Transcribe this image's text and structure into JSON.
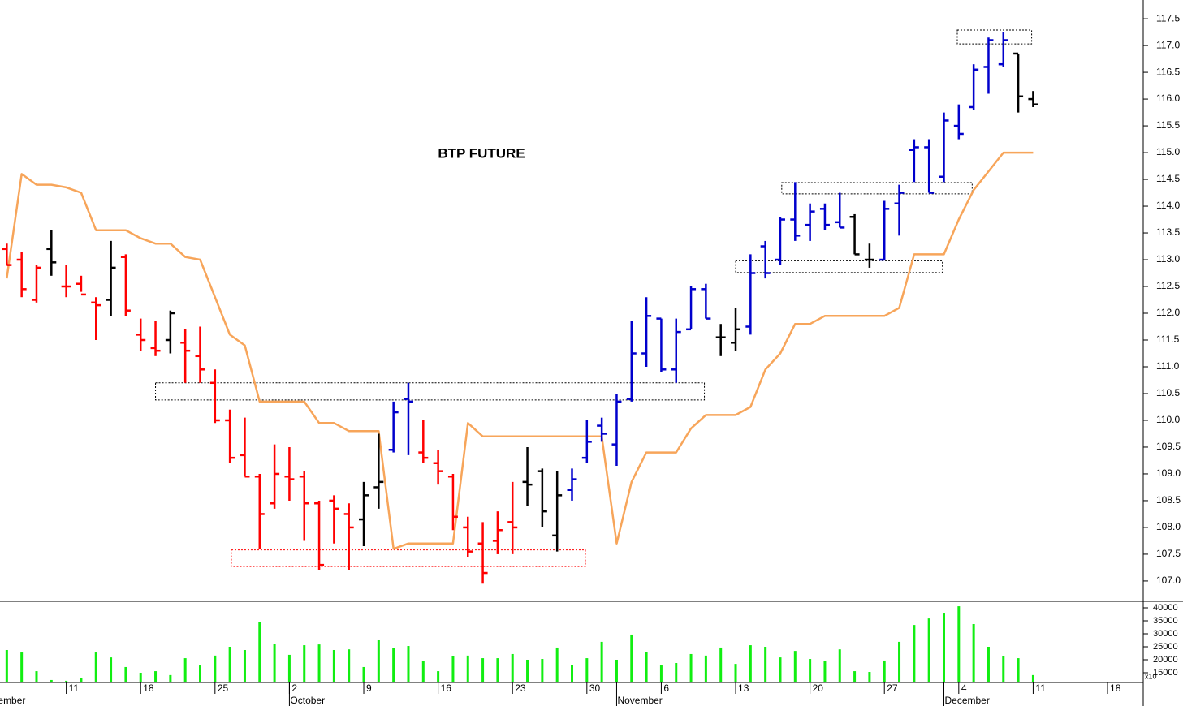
{
  "chart_data": [
    {
      "type": "ohlc",
      "title": "BTP FUTURE",
      "categories": [
        null,
        null,
        null,
        null,
        null,
        null,
        "11",
        null,
        null,
        null,
        null,
        "18",
        null,
        null,
        null,
        null,
        "25",
        null,
        null,
        null,
        null,
        "2",
        null,
        null,
        null,
        null,
        "9",
        null,
        null,
        null,
        null,
        "16",
        null,
        null,
        null,
        null,
        "23",
        null,
        null,
        null,
        null,
        "30",
        null,
        null,
        null,
        null,
        "6",
        null,
        null,
        null,
        null,
        "13",
        null,
        null,
        null,
        null,
        "20",
        null,
        null,
        null,
        null,
        "27",
        null,
        null,
        null,
        null,
        "4",
        null,
        null,
        null,
        null,
        "11",
        null,
        null,
        null,
        null,
        "18",
        null,
        null
      ],
      "months": [
        "September",
        null,
        null,
        null,
        null,
        null,
        null,
        null,
        null,
        null,
        null,
        null,
        null,
        null,
        null,
        null,
        null,
        null,
        null,
        null,
        null,
        "October",
        null,
        null,
        null,
        null,
        null,
        null,
        null,
        null,
        null,
        null,
        null,
        null,
        null,
        null,
        null,
        null,
        null,
        null,
        null,
        null,
        null,
        "November",
        null,
        null,
        null,
        null,
        null,
        null,
        null,
        null,
        null,
        null,
        null,
        null,
        null,
        null,
        null,
        null,
        null,
        null,
        null,
        null,
        null,
        "December",
        null,
        null,
        null,
        null,
        null,
        null,
        null,
        null,
        null,
        null,
        null,
        null,
        null
      ],
      "open": [
        null,
        null,
        113.2,
        113.0,
        112.25,
        113.2,
        112.5,
        112.55,
        112.2,
        112.25,
        113.05,
        111.6,
        111.35,
        111.5,
        111.45,
        111.2,
        110.7,
        110.0,
        109.35,
        108.95,
        108.45,
        108.95,
        108.95,
        108.45,
        108.5,
        108.25,
        108.15,
        108.75,
        109.45,
        110.4,
        109.4,
        109.2,
        108.95,
        108.0,
        107.7,
        107.75,
        108.1,
        108.85,
        109.05,
        107.85,
        108.7,
        109.3,
        109.9,
        109.55,
        110.4,
        111.25,
        111.9,
        110.95,
        111.7,
        112.45,
        111.55,
        111.45,
        111.75,
        113.25,
        113.0,
        113.75,
        113.65,
        113.95,
        113.7,
        113.8,
        113.0,
        113.0,
        114.05,
        115.05,
        115.1,
        114.55,
        115.5,
        115.85,
        116.6,
        116.65,
        116.85,
        116.0,
        null,
        null,
        null,
        null,
        null,
        null,
        null
      ],
      "high": [
        null,
        null,
        113.3,
        113.15,
        112.9,
        113.55,
        112.9,
        112.7,
        112.3,
        113.35,
        113.1,
        111.9,
        111.85,
        112.05,
        111.7,
        111.75,
        110.95,
        110.2,
        110.05,
        109.0,
        109.55,
        109.5,
        109.05,
        108.5,
        108.6,
        108.45,
        108.85,
        109.75,
        110.35,
        110.7,
        110.0,
        109.45,
        109.0,
        108.2,
        108.1,
        108.3,
        108.85,
        109.5,
        109.1,
        109.05,
        109.1,
        110.0,
        110.05,
        110.5,
        111.85,
        112.3,
        111.9,
        111.9,
        112.5,
        112.55,
        111.8,
        112.1,
        113.1,
        113.35,
        113.8,
        114.45,
        114.05,
        114.05,
        114.25,
        113.85,
        113.3,
        114.1,
        114.4,
        115.25,
        115.25,
        115.75,
        115.9,
        116.65,
        117.15,
        117.25,
        116.85,
        116.15,
        null,
        null,
        null,
        null,
        null,
        null,
        null
      ],
      "low": [
        null,
        null,
        112.9,
        112.3,
        112.2,
        112.7,
        112.3,
        112.4,
        111.5,
        111.95,
        111.95,
        111.3,
        111.2,
        111.25,
        110.7,
        110.7,
        109.95,
        109.2,
        108.95,
        107.6,
        108.35,
        108.5,
        107.75,
        107.2,
        107.7,
        107.2,
        107.65,
        108.35,
        109.4,
        109.35,
        109.2,
        108.8,
        107.95,
        107.45,
        106.95,
        107.5,
        107.5,
        108.4,
        108.0,
        107.55,
        108.5,
        109.2,
        109.6,
        109.15,
        110.35,
        111.0,
        110.9,
        110.7,
        111.7,
        111.9,
        111.2,
        111.3,
        111.6,
        112.65,
        112.9,
        113.35,
        113.35,
        113.55,
        113.6,
        113.1,
        112.85,
        113.0,
        113.45,
        114.45,
        114.25,
        114.45,
        115.25,
        115.8,
        116.1,
        116.6,
        115.75,
        115.85,
        null,
        null,
        null,
        null,
        null,
        null,
        null
      ],
      "close": [
        null,
        null,
        112.9,
        112.45,
        112.85,
        112.95,
        112.5,
        112.35,
        112.15,
        112.85,
        112.05,
        111.5,
        111.3,
        112.0,
        111.3,
        110.95,
        110.0,
        109.3,
        108.95,
        108.25,
        109.0,
        108.9,
        108.45,
        107.3,
        108.35,
        108.0,
        108.6,
        108.85,
        110.15,
        110.35,
        109.3,
        109.05,
        108.2,
        107.55,
        107.15,
        107.95,
        108.0,
        108.8,
        108.3,
        108.6,
        108.9,
        109.6,
        109.75,
        110.35,
        111.25,
        111.95,
        110.95,
        111.65,
        112.45,
        111.9,
        111.55,
        111.7,
        112.75,
        112.75,
        113.75,
        113.45,
        113.9,
        113.65,
        113.6,
        113.1,
        113.0,
        113.95,
        114.25,
        115.1,
        114.25,
        115.6,
        115.35,
        116.55,
        117.1,
        117.1,
        116.05,
        115.9,
        null,
        null,
        null,
        null,
        null,
        null,
        null
      ],
      "bar_colors": [
        null,
        null,
        "#ff0000",
        "#ff0000",
        "#ff0000",
        "#000000",
        "#ff0000",
        "#ff0000",
        "#ff0000",
        "#000000",
        "#ff0000",
        "#ff0000",
        "#ff0000",
        "#000000",
        "#ff0000",
        "#ff0000",
        "#ff0000",
        "#ff0000",
        "#ff0000",
        "#ff0000",
        "#ff0000",
        "#ff0000",
        "#ff0000",
        "#ff0000",
        "#ff0000",
        "#ff0000",
        "#000000",
        "#000000",
        "#0000cc",
        "#0000cc",
        "#ff0000",
        "#ff0000",
        "#ff0000",
        "#ff0000",
        "#ff0000",
        "#ff0000",
        "#ff0000",
        "#000000",
        "#000000",
        "#000000",
        "#0000cc",
        "#0000cc",
        "#0000cc",
        "#0000cc",
        "#0000cc",
        "#0000cc",
        "#0000cc",
        "#0000cc",
        "#0000cc",
        "#0000cc",
        "#000000",
        "#000000",
        "#0000cc",
        "#0000cc",
        "#0000cc",
        "#0000cc",
        "#0000cc",
        "#0000cc",
        "#0000cc",
        "#000000",
        "#000000",
        "#0000cc",
        "#0000cc",
        "#0000cc",
        "#0000cc",
        "#0000cc",
        "#0000cc",
        "#0000cc",
        "#0000cc",
        "#0000cc",
        "#000000",
        "#000000",
        null,
        null,
        null,
        null,
        null,
        null,
        null
      ],
      "line": {
        "color": "#f7a55a",
        "values": [
          null,
          null,
          112.65,
          114.6,
          114.4,
          114.4,
          114.35,
          114.25,
          113.55,
          113.55,
          113.55,
          113.4,
          113.3,
          113.3,
          113.05,
          113.0,
          112.3,
          111.6,
          111.4,
          110.35,
          110.35,
          110.35,
          110.35,
          109.95,
          109.95,
          109.8,
          109.8,
          109.8,
          107.6,
          107.7,
          107.7,
          107.7,
          107.7,
          109.95,
          109.7,
          109.7,
          109.7,
          109.7,
          109.7,
          109.7,
          109.7,
          109.7,
          109.7,
          107.7,
          108.85,
          109.4,
          109.4,
          109.4,
          109.85,
          110.1,
          110.1,
          110.1,
          110.25,
          110.95,
          111.25,
          111.8,
          111.8,
          111.95,
          111.95,
          111.95,
          111.95,
          111.95,
          112.1,
          113.1,
          113.1,
          113.1,
          113.75,
          114.3,
          114.65,
          115.0,
          115.0,
          115.0,
          null,
          null,
          null,
          null,
          null,
          null,
          null
        ]
      },
      "boxes": [
        {
          "start": 12.0,
          "end": 48.9,
          "low": 110.38,
          "high": 110.7,
          "color": "#000000"
        },
        {
          "start": 17.1,
          "end": 40.9,
          "low": 107.27,
          "high": 107.58,
          "color": "#ff0000"
        },
        {
          "start": 51.0,
          "end": 64.9,
          "low": 112.76,
          "high": 112.98,
          "color": "#000000"
        },
        {
          "start": 54.1,
          "end": 66.9,
          "low": 114.23,
          "high": 114.44,
          "color": "#000000"
        },
        {
          "start": 65.9,
          "end": 70.9,
          "low": 117.03,
          "high": 117.29,
          "color": "#000000"
        }
      ],
      "ylim": [
        106.62,
        117.85
      ],
      "yticks": [
        {
          "value": 107,
          "label": "107.0"
        },
        107.5,
        {
          "value": 108,
          "label": "108.0"
        },
        108.5,
        {
          "value": 109,
          "label": "109.0"
        },
        109.5,
        {
          "value": 110,
          "label": "110.0"
        },
        110.5,
        {
          "value": 111,
          "label": "111.0"
        },
        111.5,
        {
          "value": 112,
          "label": "112.0"
        },
        112.5,
        {
          "value": 113,
          "label": "113.0"
        },
        113.5,
        {
          "value": 114,
          "label": "114.0"
        },
        114.5,
        {
          "value": 115,
          "label": "115.0"
        },
        115.5,
        {
          "value": 116,
          "label": "116.0"
        },
        116.5,
        {
          "value": 117,
          "label": "117.0"
        },
        117.5
      ]
    },
    {
      "type": "bar",
      "color": "#11ee11",
      "axis_note": "x10",
      "values": [
        null,
        null,
        23750,
        22800,
        15600,
        12200,
        11900,
        13100,
        22800,
        20900,
        17200,
        15000,
        15600,
        14100,
        20600,
        17800,
        21600,
        25000,
        23750,
        34400,
        26250,
        21900,
        25600,
        25900,
        23750,
        24000,
        17200,
        27500,
        24400,
        25300,
        19400,
        15600,
        21250,
        21600,
        20600,
        20600,
        22200,
        20000,
        20300,
        24700,
        18100,
        20600,
        26900,
        20000,
        29700,
        23100,
        17800,
        18750,
        22200,
        21600,
        24700,
        18400,
        25600,
        25000,
        20900,
        23400,
        20300,
        19400,
        24000,
        15600,
        15300,
        19700,
        26900,
        33400,
        35900,
        37800,
        40600,
        33750,
        25000,
        21250,
        20600,
        14100,
        null,
        null,
        null,
        null,
        null,
        null,
        null
      ],
      "ylim": [
        11560,
        42500
      ],
      "yticks": [
        15000,
        20000,
        25000,
        30000,
        35000,
        40000
      ]
    }
  ]
}
